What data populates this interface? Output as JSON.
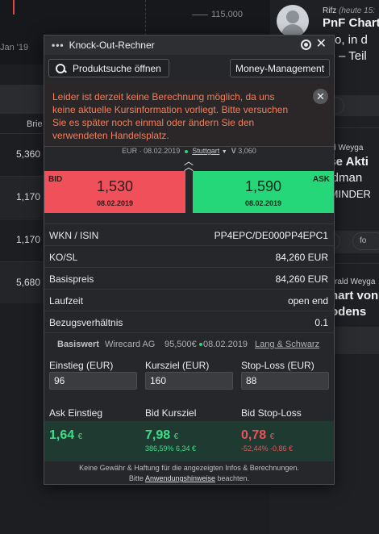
{
  "background": {
    "chart": {
      "axis_value": "115,000",
      "date_label": "Jan '19"
    },
    "table": {
      "column_header": "Brie",
      "values": [
        "5,360",
        "1,170",
        "1,170",
        "5,680"
      ]
    },
    "news": {
      "author1": "Rifz",
      "author1_meta": "(heute 15:",
      "headline1_line1": "PnF Chart",
      "headline1_line2": "allo, in d",
      "headline1_line3": "ke – Teil",
      "author2": "rald Weyga",
      "headline2_line1": "ese Akti",
      "headline2_line2": "oldman",
      "headline2_line3": "EMINDER",
      "author3": "rald Weyga",
      "headline3_line1": "hart von",
      "headline3_line2": "odens",
      "pill_label": "fo"
    }
  },
  "modal": {
    "title": "Knock-Out-Rechner",
    "dots": "•••",
    "toolbar": {
      "search_label": "Produktsuche öffnen",
      "money_label": "Money-Management"
    },
    "warning": "Leider ist derzeit keine Berechnung möglich, da uns keine aktuelle Kursinformation vorliegt. Bitte versuchen Sie es später noch einmal oder ändern Sie den verwendeten Handelsplatz.",
    "exchange": {
      "currency_date": "EUR · 08.02.2019",
      "venue": "Stuttgart",
      "volume_label": "V",
      "volume": "3,060"
    },
    "bid": {
      "label": "BID",
      "price": "1,530",
      "date": "08.02.2019"
    },
    "ask": {
      "label": "ASK",
      "price": "1,590",
      "date": "08.02.2019"
    },
    "details": [
      {
        "key": "WKN / ISIN",
        "value": "PP4EPC/DE000PP4EPC1"
      },
      {
        "key": "KO/SL",
        "value": "84,260 EUR"
      },
      {
        "key": "Basispreis",
        "value": "84,260 EUR"
      },
      {
        "key": "Laufzeit",
        "value": "open end"
      },
      {
        "key": "Bezugsverhältnis",
        "value": "0.1"
      }
    ],
    "basiswert": {
      "label": "Basiswert",
      "name": "Wirecard AG",
      "price": "95,500€",
      "date": "08.02.2019",
      "exchange": "Lang & Schwarz"
    },
    "inputs": [
      {
        "label": "Einstieg (EUR)",
        "value": "96"
      },
      {
        "label": "Kursziel (EUR)",
        "value": "160"
      },
      {
        "label": "Stop-Loss (EUR)",
        "value": "88"
      }
    ],
    "results": {
      "headers": [
        "Ask Einstieg",
        "Bid Kursziel",
        "Bid Stop-Loss"
      ],
      "ask_einstieg": {
        "value": "1,64",
        "unit": "€"
      },
      "bid_kursziel": {
        "value": "7,98",
        "unit": "€",
        "sub": "386,59% 6,34 €"
      },
      "bid_stoploss": {
        "value": "0,78",
        "unit": "€",
        "sub": "-52,44% -0,86 €"
      }
    },
    "footer": {
      "line1": "Keine Gewähr & Haftung für die angezeigten Infos & Berechnungen.",
      "line2_pre": "Bitte",
      "link": "Anwendungshinweise",
      "line2_post": "beachten."
    },
    "colors": {
      "bid": "#f0505a",
      "ask": "#26d77a",
      "warning_text": "#f07f5e",
      "positive": "#39e087",
      "negative": "#f0505a"
    }
  }
}
